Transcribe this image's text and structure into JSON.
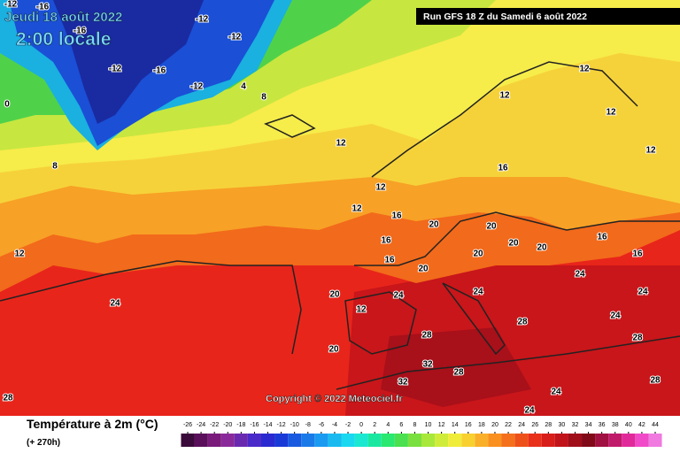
{
  "header": {
    "date": "Jeudi 18 août 2022",
    "time": "2:00 locale",
    "run": "Run GFS 18 Z du Samedi 6 août 2022"
  },
  "copyright": "Copyright © 2022 Meteociel.fr",
  "legend": {
    "title": "Température à 2m (°C)",
    "lead": "(+ 270h)",
    "ticks": [
      -26,
      -24,
      -22,
      -20,
      -18,
      -16,
      -14,
      -12,
      -10,
      -8,
      -6,
      -4,
      -2,
      0,
      2,
      4,
      6,
      8,
      10,
      12,
      14,
      16,
      18,
      20,
      22,
      24,
      26,
      28,
      30,
      32,
      34,
      36,
      38,
      40,
      42,
      44
    ],
    "colors": [
      "#3a0a3a",
      "#5a0f5a",
      "#7a1a7a",
      "#8a2a9a",
      "#6a2ab0",
      "#4a2ac8",
      "#2a2ad0",
      "#1a3ad8",
      "#1a5ae0",
      "#1a7ae8",
      "#1a9af0",
      "#1abaf0",
      "#1ad8f0",
      "#1ae8d0",
      "#1ae8a0",
      "#2ae870",
      "#4ae050",
      "#7ae040",
      "#a8e83a",
      "#d0ec3a",
      "#f0ec3a",
      "#f8d030",
      "#f9b028",
      "#f99020",
      "#f4701c",
      "#ee501a",
      "#e8301a",
      "#d81e1a",
      "#c0141a",
      "#a00e1a",
      "#800a18",
      "#a01040",
      "#c01a6a",
      "#e02a9a",
      "#f04ac8",
      "#f07ae0"
    ]
  },
  "map_labels": [
    "-12",
    "-16",
    "-16",
    "-12",
    "-12",
    "-12",
    "-16",
    "-12",
    "4",
    "0",
    "8",
    "8",
    "12",
    "12",
    "12",
    "12",
    "12",
    "16",
    "12",
    "12",
    "16",
    "16",
    "20",
    "20",
    "20",
    "20",
    "16",
    "20",
    "20",
    "24",
    "24",
    "20",
    "28",
    "28",
    "32",
    "28",
    "32",
    "24",
    "24",
    "28",
    "24",
    "24",
    "16",
    "16",
    "20",
    "24",
    "24",
    "12",
    "12",
    "28",
    "28"
  ]
}
